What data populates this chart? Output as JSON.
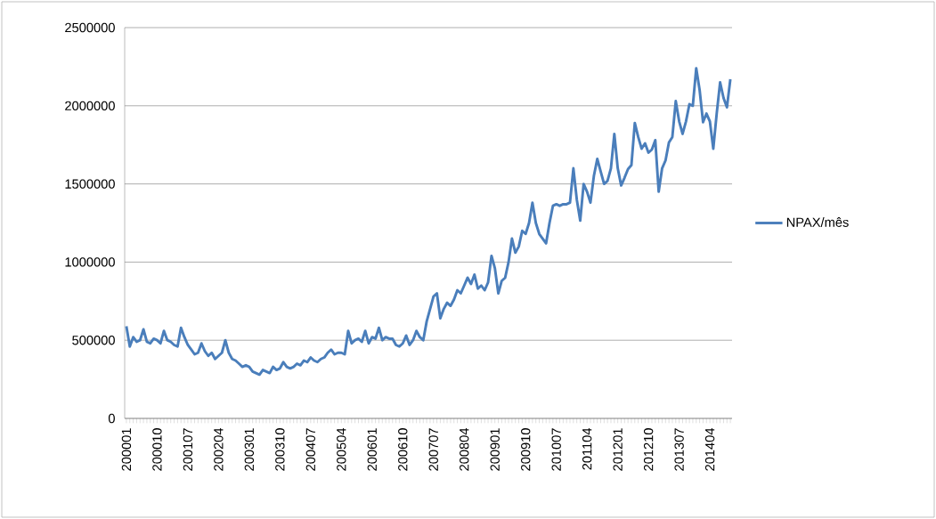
{
  "chart_data": {
    "type": "line",
    "categories": [
      "200001",
      null,
      null,
      null,
      null,
      null,
      null,
      null,
      null,
      "200010",
      null,
      null,
      null,
      null,
      null,
      null,
      null,
      null,
      "200107",
      null,
      null,
      null,
      null,
      null,
      null,
      null,
      null,
      "200204",
      null,
      null,
      null,
      null,
      null,
      null,
      null,
      null,
      "200301",
      null,
      null,
      null,
      null,
      null,
      null,
      null,
      null,
      "200310",
      null,
      null,
      null,
      null,
      null,
      null,
      null,
      null,
      "200407",
      null,
      null,
      null,
      null,
      null,
      null,
      null,
      null,
      "200504",
      null,
      null,
      null,
      null,
      null,
      null,
      null,
      null,
      "200601",
      null,
      null,
      null,
      null,
      null,
      null,
      null,
      null,
      "200610",
      null,
      null,
      null,
      null,
      null,
      null,
      null,
      null,
      "200707",
      null,
      null,
      null,
      null,
      null,
      null,
      null,
      null,
      "200804",
      null,
      null,
      null,
      null,
      null,
      null,
      null,
      null,
      "200901",
      null,
      null,
      null,
      null,
      null,
      null,
      null,
      null,
      "200910",
      null,
      null,
      null,
      null,
      null,
      null,
      null,
      null,
      "201007",
      null,
      null,
      null,
      null,
      null,
      null,
      null,
      null,
      "201104",
      null,
      null,
      null,
      null,
      null,
      null,
      null,
      null,
      "201201",
      null,
      null,
      null,
      null,
      null,
      null,
      null,
      null,
      "201210",
      null,
      null,
      null,
      null,
      null,
      null,
      null,
      null,
      "201307",
      null,
      null,
      null,
      null,
      null,
      null,
      null,
      null,
      "201404",
      null,
      null,
      null,
      null,
      null,
      null
    ],
    "series": [
      {
        "name": "NPAX/mês",
        "color": "#4a7ebb",
        "values": [
          590000,
          460000,
          520000,
          490000,
          500000,
          570000,
          490000,
          480000,
          510000,
          500000,
          480000,
          560000,
          500000,
          490000,
          470000,
          460000,
          580000,
          520000,
          470000,
          440000,
          410000,
          420000,
          480000,
          430000,
          400000,
          420000,
          380000,
          400000,
          420000,
          500000,
          420000,
          380000,
          370000,
          350000,
          330000,
          340000,
          330000,
          300000,
          290000,
          280000,
          310000,
          300000,
          290000,
          330000,
          310000,
          320000,
          360000,
          330000,
          320000,
          330000,
          350000,
          340000,
          370000,
          360000,
          390000,
          370000,
          360000,
          380000,
          390000,
          420000,
          440000,
          410000,
          420000,
          420000,
          410000,
          560000,
          480000,
          500000,
          510000,
          490000,
          560000,
          480000,
          520000,
          510000,
          580000,
          500000,
          520000,
          510000,
          510000,
          470000,
          460000,
          480000,
          530000,
          470000,
          500000,
          560000,
          520000,
          500000,
          620000,
          700000,
          780000,
          800000,
          640000,
          700000,
          740000,
          720000,
          760000,
          820000,
          800000,
          850000,
          900000,
          860000,
          920000,
          830000,
          850000,
          820000,
          870000,
          1040000,
          960000,
          800000,
          880000,
          900000,
          1000000,
          1150000,
          1060000,
          1100000,
          1200000,
          1180000,
          1250000,
          1380000,
          1250000,
          1180000,
          1150000,
          1120000,
          1250000,
          1360000,
          1370000,
          1360000,
          1370000,
          1370000,
          1380000,
          1600000,
          1400000,
          1265000,
          1500000,
          1450000,
          1380000,
          1550000,
          1660000,
          1580000,
          1500000,
          1520000,
          1600000,
          1820000,
          1600000,
          1490000,
          1540000,
          1595000,
          1620000,
          1890000,
          1800000,
          1725000,
          1760000,
          1700000,
          1720000,
          1780000,
          1450000,
          1600000,
          1650000,
          1765000,
          1800000,
          2030000,
          1900000,
          1820000,
          1900000,
          2010000,
          2000000,
          2240000,
          2100000,
          1895000,
          1950000,
          1900000,
          1725000,
          1950000,
          2150000,
          2050000,
          1990000,
          2170000
        ]
      }
    ],
    "ylim": [
      0,
      2500000
    ],
    "yticks": [
      0,
      500000,
      1000000,
      1500000,
      2000000,
      2500000
    ],
    "grid": "y",
    "legend": "right",
    "marker": "none",
    "line_style": "solid"
  }
}
